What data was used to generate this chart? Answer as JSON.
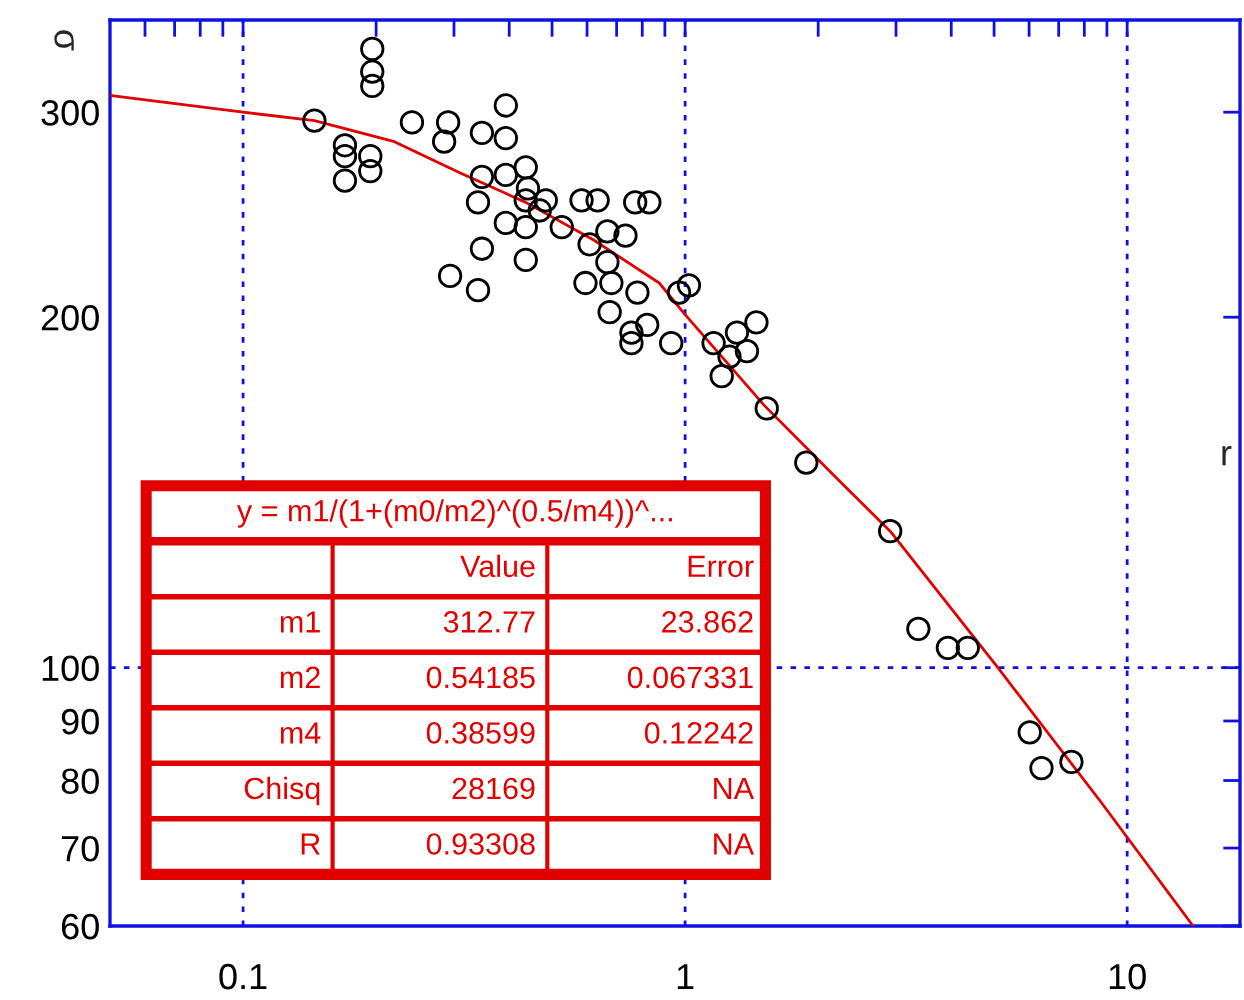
{
  "chart_data": {
    "type": "scatter",
    "xlabel": "r",
    "ylabel": "σ",
    "log": "xy",
    "grid": true,
    "legend": false,
    "xlim": [
      0.05,
      18
    ],
    "ylim": [
      60,
      360
    ],
    "xticks": [
      {
        "value": 0.06,
        "label": null
      },
      {
        "value": 0.07,
        "label": null
      },
      {
        "value": 0.08,
        "label": null
      },
      {
        "value": 0.09,
        "label": null
      },
      0.1,
      {
        "value": 0.2,
        "label": null
      },
      {
        "value": 0.3,
        "label": null
      },
      {
        "value": 0.4,
        "label": null
      },
      {
        "value": 0.5,
        "label": null
      },
      {
        "value": 0.6,
        "label": null
      },
      {
        "value": 0.7,
        "label": null
      },
      {
        "value": 0.8,
        "label": null
      },
      {
        "value": 0.9,
        "label": null
      },
      1,
      {
        "value": 2,
        "label": null
      },
      {
        "value": 3,
        "label": null
      },
      {
        "value": 4,
        "label": null
      },
      {
        "value": 5,
        "label": null
      },
      {
        "value": 6,
        "label": null
      },
      {
        "value": 7,
        "label": null
      },
      {
        "value": 8,
        "label": null
      },
      {
        "value": 9,
        "label": null
      },
      10
    ],
    "yticks": [
      60,
      70,
      80,
      90,
      100,
      200,
      300
    ],
    "series": [
      {
        "color": "#000000",
        "marker": "circle",
        "x": [
          0.145,
          0.196,
          0.196,
          0.196,
          0.17,
          0.17,
          0.17,
          0.194,
          0.194,
          0.241,
          0.291,
          0.285,
          0.347,
          0.393,
          0.393,
          0.347,
          0.34,
          0.347,
          0.294,
          0.34,
          0.393,
          0.436,
          0.441,
          0.436,
          0.484,
          0.469,
          0.393,
          0.436,
          0.436,
          0.526,
          0.583,
          0.634,
          0.667,
          0.733,
          0.771,
          0.83,
          0.608,
          0.667,
          0.595,
          0.681,
          0.675,
          0.78,
          0.756,
          0.821,
          0.756,
          0.93,
          0.969,
          1.02,
          1.16,
          1.31,
          1.38,
          1.26,
          1.21,
          1.45,
          1.53,
          1.88,
          2.91,
          3.37,
          3.93,
          4.36,
          6.02,
          6.4,
          7.48
        ],
        "values": [
          295,
          340,
          325,
          316,
          281,
          275,
          262,
          275,
          267,
          294,
          294,
          283,
          288,
          304,
          285,
          264,
          251,
          229,
          217,
          211,
          265,
          269,
          258,
          252,
          252,
          247,
          241,
          239,
          224,
          239,
          252,
          252,
          237,
          235,
          251,
          251,
          231,
          223,
          214,
          214,
          202,
          210,
          194,
          197,
          190,
          190,
          210,
          213,
          190,
          194,
          187,
          185,
          178,
          198,
          167,
          150,
          131,
          108,
          104,
          104,
          88,
          82,
          83
        ]
      },
      {
        "type": "line",
        "color": "#e00000",
        "marker": "none",
        "line_style": "solid",
        "x": [
          0.0504,
          0.1,
          0.145,
          0.22,
          0.31,
          0.436,
          0.621,
          0.874,
          1,
          1.51,
          2.22,
          2.91,
          5.1,
          8.74,
          14.1
        ],
        "values": [
          310,
          300,
          295,
          283,
          266,
          251,
          233,
          214,
          201,
          168,
          145,
          131,
          100,
          76.6,
          60
        ]
      }
    ],
    "annotations": [
      "y = m1/(1+(m0/m2)^(0.5/m4))^...",
      "Value",
      "Error",
      "m1",
      "312.77",
      "23.862",
      "m2",
      "0.54185",
      "0.067331",
      "m4",
      "0.38599",
      "0.12242",
      "Chisq",
      "28169",
      "NA",
      "R",
      "0.93308",
      "NA"
    ]
  }
}
